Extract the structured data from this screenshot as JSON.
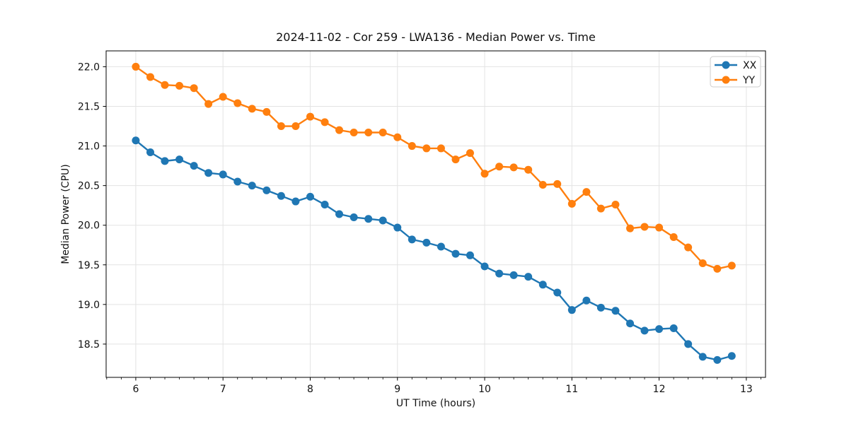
{
  "chart_data": {
    "type": "line",
    "title": "2024-11-02 - Cor 259 - LWA136 - Median Power vs. Time",
    "xlabel": "UT Time (hours)",
    "ylabel": "Median Power (CPU)",
    "grid": true,
    "legend_position": "upper right",
    "xlim": [
      5.66,
      13.22
    ],
    "ylim": [
      18.08,
      22.2
    ],
    "x_ticks": [
      6,
      7,
      8,
      9,
      10,
      11,
      12,
      13
    ],
    "y_ticks": [
      18.5,
      19.0,
      19.5,
      20.0,
      20.5,
      21.0,
      21.5,
      22.0
    ],
    "x_minor_tick_step": 0.16667,
    "x": [
      6.0,
      6.167,
      6.333,
      6.5,
      6.667,
      6.833,
      7.0,
      7.167,
      7.333,
      7.5,
      7.667,
      7.833,
      8.0,
      8.167,
      8.333,
      8.5,
      8.667,
      8.833,
      9.0,
      9.167,
      9.333,
      9.5,
      9.667,
      9.833,
      10.0,
      10.167,
      10.333,
      10.5,
      10.667,
      10.833,
      11.0,
      11.167,
      11.333,
      11.5,
      11.667,
      11.833,
      12.0,
      12.167,
      12.333,
      12.5,
      12.667,
      12.833
    ],
    "series": [
      {
        "name": "XX",
        "color": "#1f77b4",
        "marker": "circle",
        "values": [
          21.07,
          20.92,
          20.81,
          20.83,
          20.75,
          20.66,
          20.64,
          20.55,
          20.5,
          20.44,
          20.37,
          20.3,
          20.36,
          20.26,
          20.14,
          20.1,
          20.08,
          20.06,
          19.97,
          19.82,
          19.78,
          19.73,
          19.64,
          19.62,
          19.48,
          19.39,
          19.37,
          19.35,
          19.25,
          19.15,
          18.93,
          19.05,
          18.96,
          18.92,
          18.76,
          18.67,
          18.69,
          18.7,
          18.5,
          18.34,
          18.3,
          18.35
        ]
      },
      {
        "name": "YY",
        "color": "#ff7f0e",
        "marker": "circle",
        "values": [
          22.0,
          21.87,
          21.77,
          21.76,
          21.73,
          21.53,
          21.62,
          21.54,
          21.47,
          21.43,
          21.25,
          21.25,
          21.37,
          21.3,
          21.2,
          21.17,
          21.17,
          21.17,
          21.11,
          21.0,
          20.97,
          20.97,
          20.83,
          20.91,
          20.65,
          20.74,
          20.73,
          20.7,
          20.51,
          20.52,
          20.27,
          20.42,
          20.21,
          20.26,
          19.96,
          19.98,
          19.97,
          19.85,
          19.72,
          19.52,
          19.45,
          19.49
        ]
      }
    ],
    "colors": {
      "series_xx": "#1f77b4",
      "series_yy": "#ff7f0e",
      "grid": "#e3e3e3",
      "spine": "#000000",
      "text": "#111111",
      "legend_border": "#cccccc"
    }
  }
}
